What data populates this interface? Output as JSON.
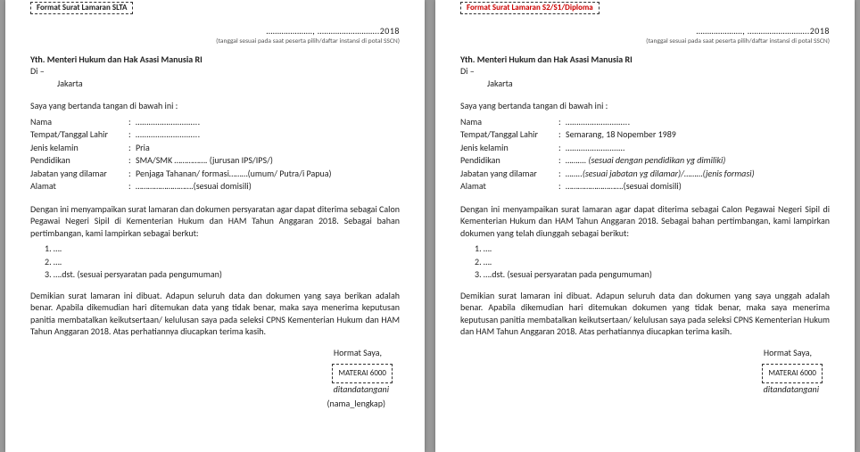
{
  "left": {
    "tab": "Format Surat Lamaran SLTA",
    "date_dots": "…………………, ……………………….2018",
    "date_note": "(tanggal sesuai pada saat peserta pilih/daftar instansi di potal SSCN)",
    "yth": "Yth. Menteri Hukum dan Hak Asasi Manusia RI",
    "di": "Di –",
    "city": "Jakarta",
    "intro": "Saya yang bertanda tangan di bawah ini :",
    "fields": {
      "nama_l": "Nama",
      "nama_v": "………………………..",
      "ttl_l": "Tempat/Tanggal Lahir",
      "ttl_v": "………………………..",
      "jk_l": "Jenis kelamin",
      "jk_v": "Pria",
      "pend_l": "Pendidikan",
      "pend_v": "SMA/SMK ……………. (jurusan IPS/IPS/)",
      "jab_l": "Jabatan yang dilamar",
      "jab_v": "Penjaga Tahanan/ formasi………(umum/ Putra/i Papua)",
      "alm_l": "Alamat",
      "alm_v": "……………………….(sesuai domisili)"
    },
    "body": "Dengan ini menyampaikan surat lamaran dan dokumen persyaratan agar dapat diterima sebagai Calon Pegawai Negeri Sipil di Kementerian Hukum dan HAM Tahun Anggaran 2018. Sebagai bahan pertimbangan, kami lampirkan sebagai berkut:",
    "li1": "1. ….",
    "li2": "2. ….",
    "li3": "3. ….dst. (sesuai persyaratan pada pengumuman)",
    "closing": "Demikian surat lamaran ini dibuat. Adapun seluruh data dan dokumen yang saya berikan adalah benar. Apabila dikemudian hari ditemukan data yang tidak benar, maka saya menerima keputusan panitia membatalkan keikutsertaan/ kelulusan saya pada seleksi CPNS Kementerian Hukum dan HAM Tahun Anggaran 2018. Atas perhatiannya diucapkan terima kasih.",
    "hormat": "Hormat Saya,",
    "materai": "MATERAI 6000",
    "signed": "ditandatangani",
    "namefull": "(nama_lengkap)"
  },
  "right": {
    "tab": "Format Surat Lamaran S2/S1/Diploma",
    "date_dots": "…………………, ……………………….2018",
    "date_note": "(tanggal sesuai pada saat peserta pilih/daftar instansi di potal SSCN)",
    "yth": "Yth. Menteri Hukum dan Hak Asasi Manusia RI",
    "di": "Di –",
    "city": "Jakarta",
    "intro": "Saya yang bertanda tangan di bawah ini :",
    "fields": {
      "nama_l": "Nama",
      "nama_v": "………………………..",
      "ttl_l": "Tempat/Tanggal Lahir",
      "ttl_v": "Semarang, 18 Nopember 1989",
      "jk_l": "Jenis kelamin",
      "jk_v": "………………………",
      "pend_l": "Pendidikan",
      "pend_v": "………. (sesuai dengan pendidikan yg dimiliki)",
      "jab_l": "Jabatan yang dilamar",
      "jab_v": "……..(sesuai jabatan yg dilamar)/………(jenis formasi)",
      "alm_l": "Alamat",
      "alm_v": "……………………….(sesuai domisili)"
    },
    "body": "Dengan ini menyampaikan surat lamaran agar dapat diterima sebagai Calon Pegawai Negeri Sipil di Kementerian Hukum dan HAM Tahun Anggaran 2018. Sebagai bahan pertimbangan, kami lampirkan dokumen yang telah diunggah sebagai berikut:",
    "li1": "1. ….",
    "li2": "2. ….",
    "li3": "3. ….dst. (sesuai persyaratan pada pengumuman)",
    "closing": "Demikian surat lamaran ini dibuat. Adapun seluruh data dan dokumen yang saya unggah adalah benar. Apabila dikemudian hari ditemukan dokumen yang tidak benar, maka saya menerima keputusan panitia membatalkan keikutsertaan/ kelulusan saya pada seleksi CPNS Kementerian Hukum dan HAM Tahun Anggaran 2018. Atas perhatiannya diucapkan terima kasih.",
    "hormat": "Hormat Saya,",
    "materai": "MATERAI 6000",
    "signed": "ditandatangani"
  }
}
